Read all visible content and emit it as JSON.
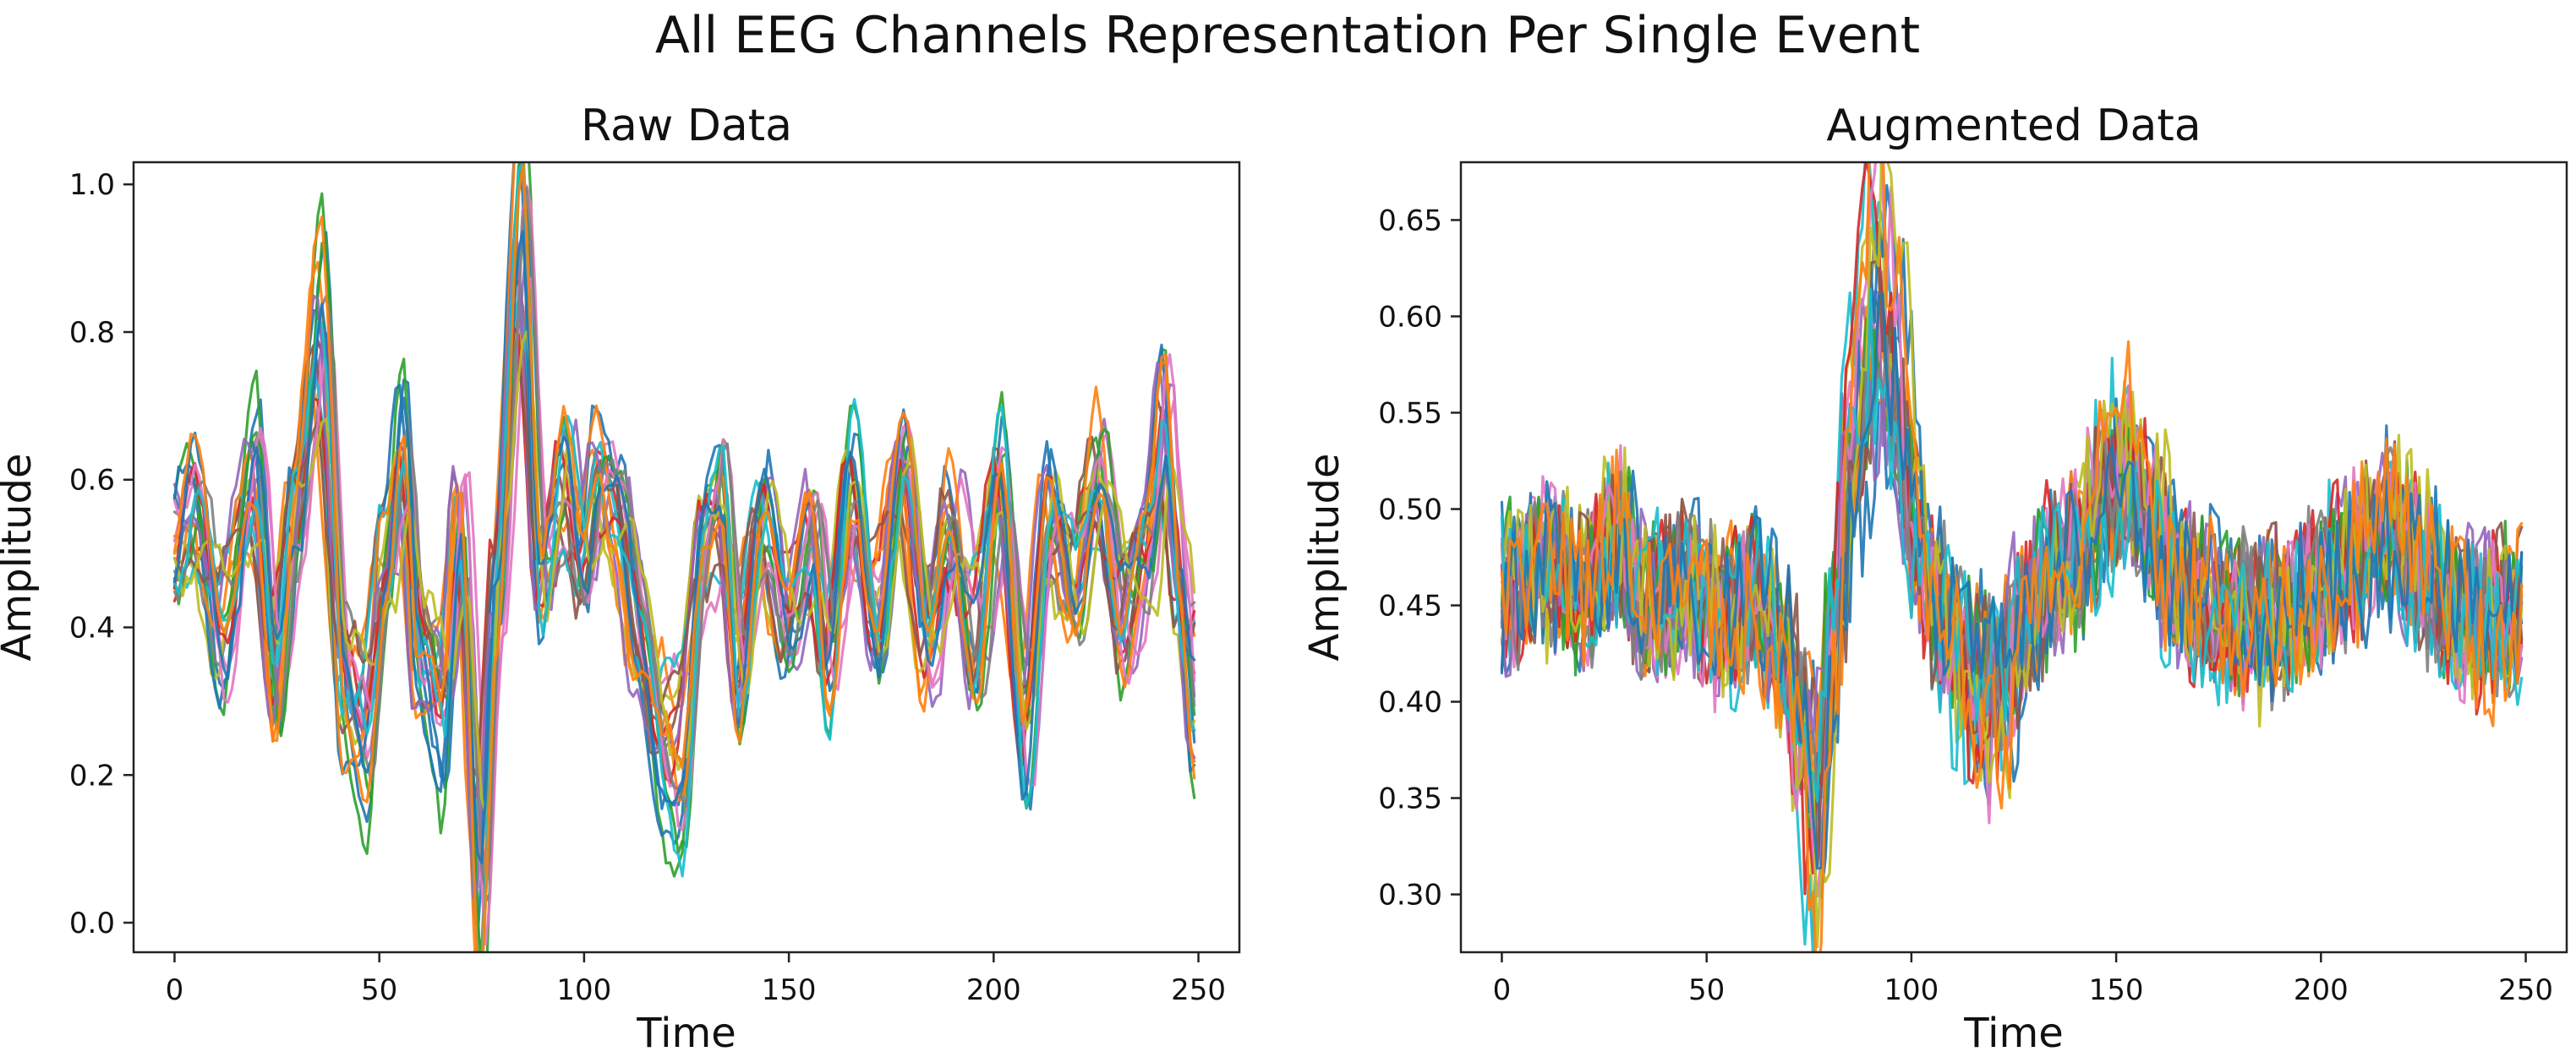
{
  "figure": {
    "suptitle": "All EEG Channels Representation Per Single Event"
  },
  "colors": [
    "#1f77b4",
    "#ff7f0e",
    "#2ca02c",
    "#d62728",
    "#9467bd",
    "#8c564b",
    "#e377c2",
    "#7f7f7f",
    "#bcbd22",
    "#17becf"
  ],
  "chart_data": [
    {
      "type": "line",
      "title": "Raw Data",
      "xlabel": "Time",
      "ylabel": "Amplitude",
      "xlim": [
        -10,
        260
      ],
      "ylim": [
        -0.04,
        1.03
      ],
      "xticks": [
        0,
        50,
        100,
        150,
        200,
        250
      ],
      "xtick_labels": [
        "0",
        "50",
        "100",
        "150",
        "200",
        "250"
      ],
      "yticks": [
        0.0,
        0.2,
        0.4,
        0.6,
        0.8,
        1.0
      ],
      "ytick_labels": [
        "0.0",
        "0.2",
        "0.4",
        "0.6",
        "0.8",
        "1.0"
      ],
      "grid": false,
      "n_series": 22,
      "baseline": 0.48,
      "keypoints": [
        [
          0,
          0.5
        ],
        [
          5,
          0.58
        ],
        [
          12,
          0.38
        ],
        [
          20,
          0.62
        ],
        [
          25,
          0.33
        ],
        [
          30,
          0.55
        ],
        [
          36,
          0.82
        ],
        [
          42,
          0.3
        ],
        [
          47,
          0.25
        ],
        [
          52,
          0.5
        ],
        [
          56,
          0.65
        ],
        [
          60,
          0.35
        ],
        [
          66,
          0.28
        ],
        [
          70,
          0.55
        ],
        [
          75,
          0.03
        ],
        [
          79,
          0.45
        ],
        [
          85,
          0.96
        ],
        [
          90,
          0.45
        ],
        [
          96,
          0.6
        ],
        [
          100,
          0.5
        ],
        [
          104,
          0.62
        ],
        [
          108,
          0.55
        ],
        [
          114,
          0.38
        ],
        [
          120,
          0.25
        ],
        [
          124,
          0.2
        ],
        [
          130,
          0.5
        ],
        [
          134,
          0.58
        ],
        [
          138,
          0.35
        ],
        [
          144,
          0.55
        ],
        [
          150,
          0.4
        ],
        [
          156,
          0.52
        ],
        [
          160,
          0.33
        ],
        [
          166,
          0.6
        ],
        [
          172,
          0.42
        ],
        [
          178,
          0.62
        ],
        [
          184,
          0.36
        ],
        [
          190,
          0.55
        ],
        [
          196,
          0.38
        ],
        [
          202,
          0.6
        ],
        [
          208,
          0.25
        ],
        [
          214,
          0.55
        ],
        [
          220,
          0.45
        ],
        [
          226,
          0.62
        ],
        [
          232,
          0.4
        ],
        [
          238,
          0.5
        ],
        [
          242,
          0.68
        ],
        [
          246,
          0.45
        ],
        [
          249,
          0.3
        ]
      ],
      "amplitude_range": [
        0.55,
        1.35
      ],
      "oscillation": 0.09,
      "noise": 0.008
    },
    {
      "type": "line",
      "title": "Augmented Data",
      "xlabel": "Time",
      "ylabel": "Amplitude",
      "xlim": [
        -10,
        260
      ],
      "ylim": [
        0.27,
        0.68
      ],
      "xticks": [
        0,
        50,
        100,
        150,
        200,
        250
      ],
      "xtick_labels": [
        "0",
        "50",
        "100",
        "150",
        "200",
        "250"
      ],
      "yticks": [
        0.3,
        0.35,
        0.4,
        0.45,
        0.5,
        0.55,
        0.6,
        0.65
      ],
      "ytick_labels": [
        "0.30",
        "0.35",
        "0.40",
        "0.45",
        "0.50",
        "0.55",
        "0.60",
        "0.65"
      ],
      "grid": false,
      "n_series": 22,
      "baseline": 0.46,
      "keypoints": [
        [
          0,
          0.46
        ],
        [
          10,
          0.47
        ],
        [
          20,
          0.46
        ],
        [
          28,
          0.49
        ],
        [
          35,
          0.45
        ],
        [
          45,
          0.46
        ],
        [
          55,
          0.44
        ],
        [
          62,
          0.45
        ],
        [
          68,
          0.42
        ],
        [
          73,
          0.38
        ],
        [
          77,
          0.31
        ],
        [
          81,
          0.42
        ],
        [
          86,
          0.55
        ],
        [
          91,
          0.64
        ],
        [
          96,
          0.6
        ],
        [
          101,
          0.5
        ],
        [
          106,
          0.45
        ],
        [
          112,
          0.42
        ],
        [
          118,
          0.39
        ],
        [
          122,
          0.4
        ],
        [
          128,
          0.44
        ],
        [
          135,
          0.47
        ],
        [
          142,
          0.49
        ],
        [
          148,
          0.52
        ],
        [
          153,
          0.53
        ],
        [
          158,
          0.5
        ],
        [
          165,
          0.46
        ],
        [
          172,
          0.45
        ],
        [
          180,
          0.44
        ],
        [
          190,
          0.44
        ],
        [
          200,
          0.46
        ],
        [
          210,
          0.48
        ],
        [
          218,
          0.5
        ],
        [
          224,
          0.47
        ],
        [
          232,
          0.45
        ],
        [
          240,
          0.44
        ],
        [
          249,
          0.44
        ]
      ],
      "amplitude_range": [
        0.5,
        1.25
      ],
      "oscillation": 0.012,
      "noise": 0.018
    }
  ]
}
